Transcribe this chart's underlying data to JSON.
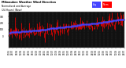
{
  "title": "Milwaukee Weather Wind Direction",
  "subtitle": "Normalized and Average",
  "subtitle2": "(24 Hours) (New)",
  "background_color": "#ffffff",
  "plot_bg_color": "#111111",
  "grid_color": "#444444",
  "num_points": 200,
  "red_color": "#ff0000",
  "blue_color": "#4444ff",
  "legend_blue_label": "Avg",
  "legend_red_label": "Norm",
  "ylim_min": -180,
  "ylim_max": 380,
  "seed": 42
}
